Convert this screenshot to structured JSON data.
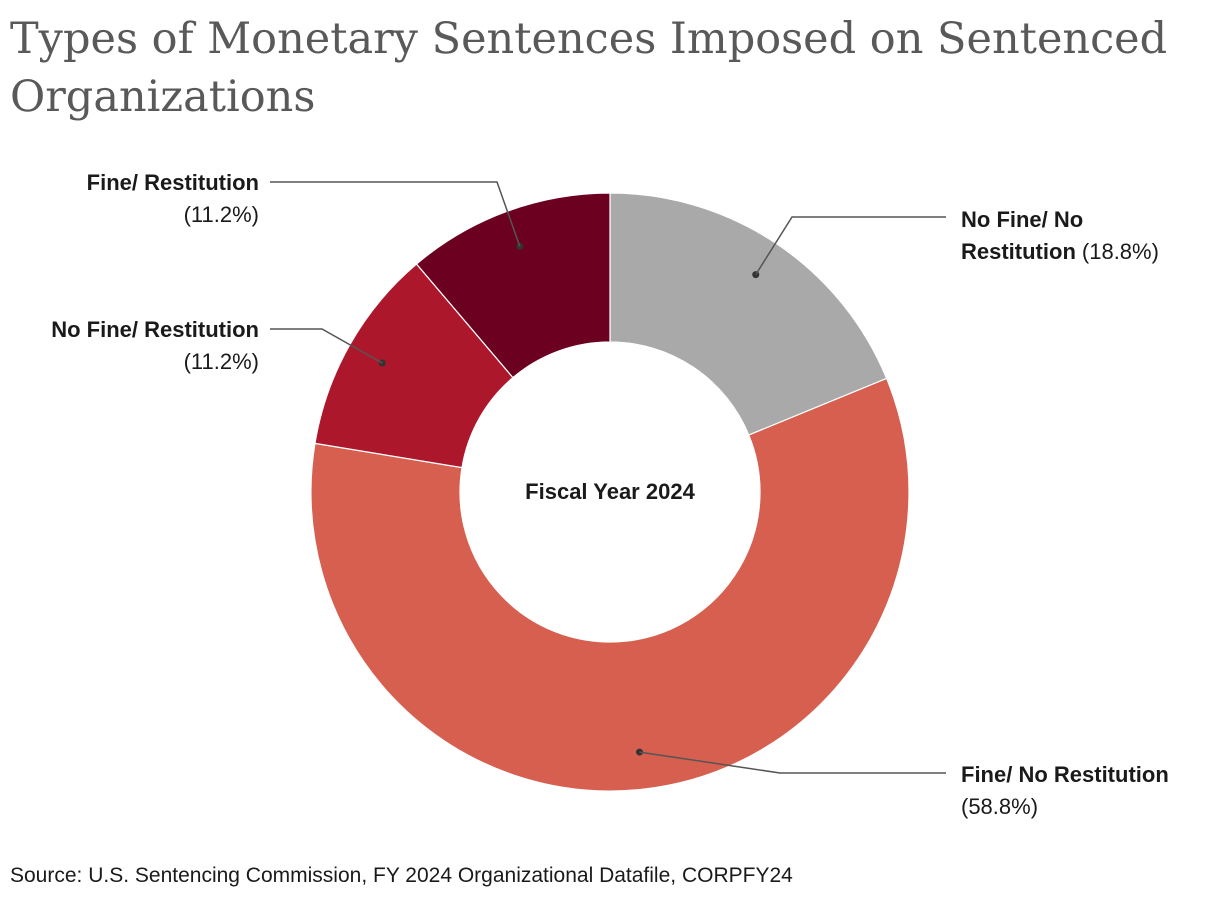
{
  "chart_data": {
    "type": "pie",
    "variant": "donut",
    "title": "Types of Monetary Sentences Imposed on Sentenced Organizations",
    "center_label": "Fiscal Year 2024",
    "slices": [
      {
        "name_line1": "No Fine/ No",
        "name_line2": "Restitution",
        "label_full": "No Fine/ No Restitution",
        "value": 18.8,
        "value_text": "(18.8%)",
        "color": "#a9a9a9"
      },
      {
        "name_line1": "Fine/ No Restitution",
        "name_line2": "",
        "label_full": "Fine/ No Restitution",
        "value": 58.8,
        "value_text": "(58.8%)",
        "color": "#d65f4f"
      },
      {
        "name_line1": "No Fine/ Restitution",
        "name_line2": "",
        "label_full": "No Fine/ Restitution",
        "value": 11.2,
        "value_text": "(11.2%)",
        "color": "#ad172b"
      },
      {
        "name_line1": "Fine/ Restitution",
        "name_line2": "",
        "label_full": "Fine/ Restitution",
        "value": 11.2,
        "value_text": "(11.2%)",
        "color": "#6b0020"
      }
    ],
    "source": "Source: U.S. Sentencing Commission, FY 2024 Organizational Datafile, CORPFY24"
  }
}
